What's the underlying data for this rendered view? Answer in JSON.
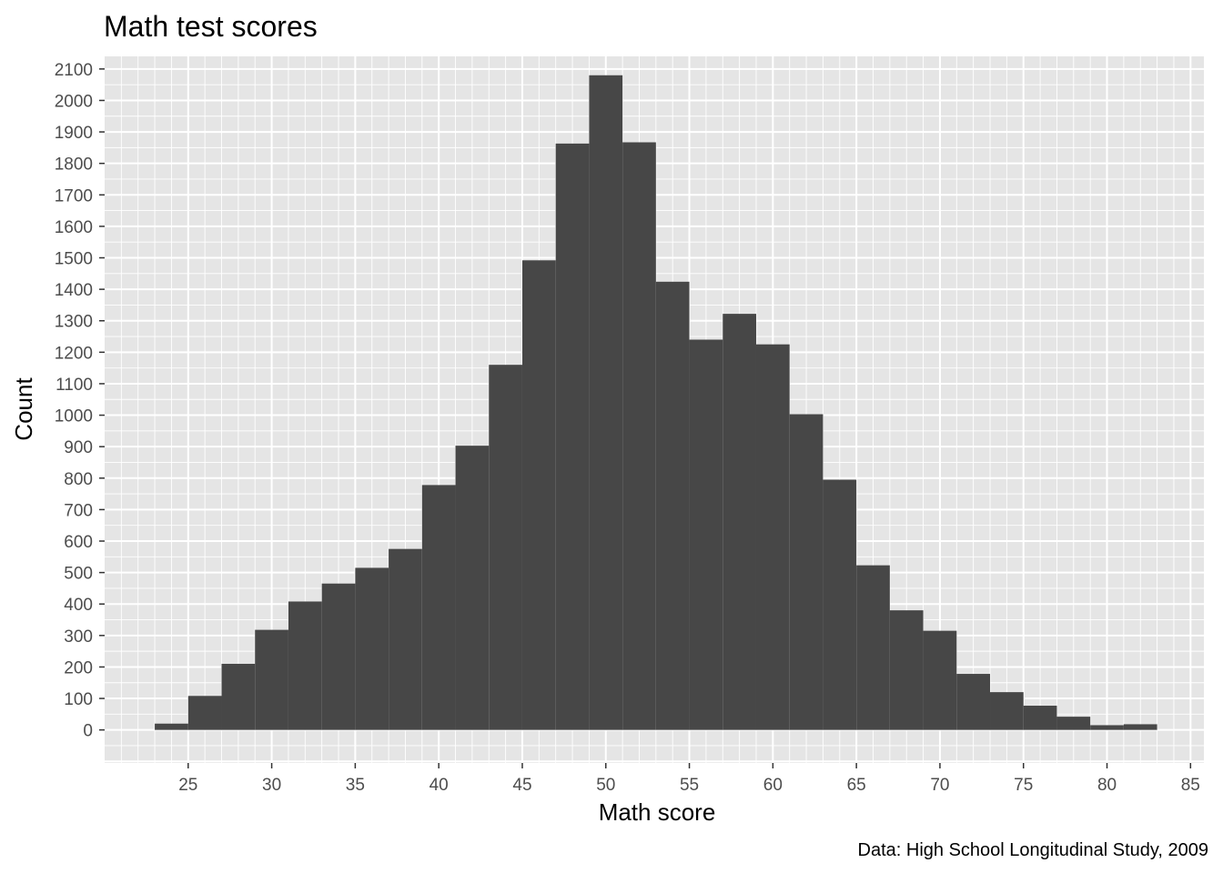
{
  "chart_data": {
    "type": "bar",
    "title": "Math test scores",
    "xlabel": "Math score",
    "ylabel": "Count",
    "caption": "Data: High School Longitudinal Study, 2009",
    "bin_width": 2,
    "bins": [
      {
        "start": 23,
        "end": 25,
        "count": 20
      },
      {
        "start": 25,
        "end": 27,
        "count": 108
      },
      {
        "start": 27,
        "end": 29,
        "count": 210
      },
      {
        "start": 29,
        "end": 31,
        "count": 318
      },
      {
        "start": 31,
        "end": 33,
        "count": 408
      },
      {
        "start": 33,
        "end": 35,
        "count": 465
      },
      {
        "start": 35,
        "end": 37,
        "count": 515
      },
      {
        "start": 37,
        "end": 39,
        "count": 575
      },
      {
        "start": 39,
        "end": 41,
        "count": 778
      },
      {
        "start": 41,
        "end": 43,
        "count": 903
      },
      {
        "start": 43,
        "end": 45,
        "count": 1160
      },
      {
        "start": 45,
        "end": 47,
        "count": 1492
      },
      {
        "start": 47,
        "end": 49,
        "count": 1863
      },
      {
        "start": 49,
        "end": 51,
        "count": 2080
      },
      {
        "start": 51,
        "end": 53,
        "count": 1867
      },
      {
        "start": 53,
        "end": 55,
        "count": 1424
      },
      {
        "start": 55,
        "end": 57,
        "count": 1240
      },
      {
        "start": 57,
        "end": 59,
        "count": 1322
      },
      {
        "start": 59,
        "end": 61,
        "count": 1225
      },
      {
        "start": 61,
        "end": 63,
        "count": 1003
      },
      {
        "start": 63,
        "end": 65,
        "count": 795
      },
      {
        "start": 65,
        "end": 67,
        "count": 523
      },
      {
        "start": 67,
        "end": 69,
        "count": 380
      },
      {
        "start": 69,
        "end": 71,
        "count": 315
      },
      {
        "start": 71,
        "end": 73,
        "count": 178
      },
      {
        "start": 73,
        "end": 75,
        "count": 120
      },
      {
        "start": 75,
        "end": 77,
        "count": 77
      },
      {
        "start": 77,
        "end": 79,
        "count": 42
      },
      {
        "start": 79,
        "end": 81,
        "count": 15
      },
      {
        "start": 81,
        "end": 83,
        "count": 18
      }
    ],
    "xlim": [
      20.0,
      85.8
    ],
    "ylim": [
      -105,
      2140
    ],
    "x_ticks": [
      25,
      30,
      35,
      40,
      45,
      50,
      55,
      60,
      65,
      70,
      75,
      80,
      85
    ],
    "y_ticks": [
      0,
      100,
      200,
      300,
      400,
      500,
      600,
      700,
      800,
      900,
      1000,
      1100,
      1200,
      1300,
      1400,
      1500,
      1600,
      1700,
      1800,
      1900,
      2000,
      2100
    ],
    "grid": true,
    "colors": {
      "bar": "#474747",
      "panel_background": "#e5e5e5",
      "grid_line": "#ffffff",
      "tick_label": "#4d4d4d",
      "tick_mark": "#333333"
    }
  }
}
